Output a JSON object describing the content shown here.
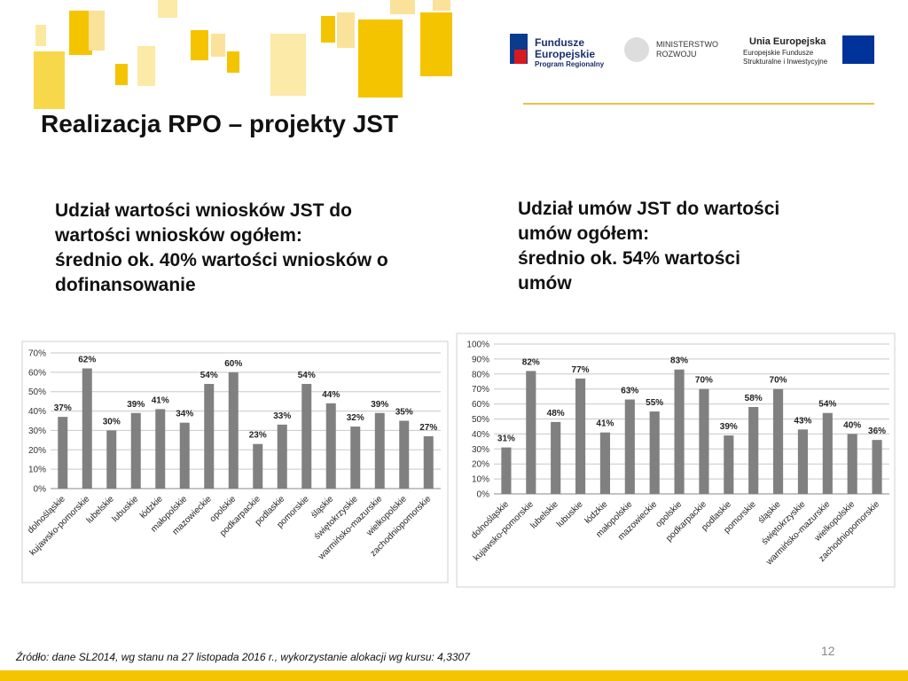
{
  "header": {
    "title": "Realizacja RPO – projekty JST"
  },
  "logos": {
    "fundusze": [
      "Fundusze",
      "Europejskie",
      "Program Regionalny"
    ],
    "ministerstwo": [
      "MINISTERSTWO",
      "ROZWOJU"
    ],
    "unia": [
      "Unia Europejska",
      "Europejskie Fundusze",
      "Strukturalne i Inwestycyjne"
    ]
  },
  "chart_data": [
    {
      "type": "bar",
      "title": [
        "Udział wartości wniosków JST do",
        "wartości wniosków ogółem:",
        "średnio ok. 40% wartości wniosków o",
        "dofinansowanie"
      ],
      "categories": [
        "dolnośląskie",
        "kujawsko-pomorskie",
        "lubelskie",
        "lubuskie",
        "łódzkie",
        "małopolskie",
        "mazowieckie",
        "opolskie",
        "podkarpackie",
        "podlaskie",
        "pomorskie",
        "śląskie",
        "świętokrzyskie",
        "warmińsko-mazurskie",
        "wielkopolskie",
        "zachodniopomorskie"
      ],
      "values": [
        37,
        62,
        30,
        39,
        41,
        34,
        54,
        60,
        23,
        33,
        54,
        44,
        32,
        39,
        35,
        27
      ],
      "value_labels": [
        "37%",
        "62%",
        "30%",
        "39%",
        "41%",
        "34%",
        "54%",
        "60%",
        "23%",
        "33%",
        "54%",
        "44%",
        "32%",
        "39%",
        "35%",
        "27%"
      ],
      "color": "#808080",
      "ylim": [
        0,
        70
      ],
      "yticks": [
        {
          "value": 0,
          "label": "0%"
        },
        {
          "value": 10,
          "label": "10%"
        },
        {
          "value": 20,
          "label": "20%"
        },
        {
          "value": 30,
          "label": "30%"
        },
        {
          "value": 40,
          "label": "40%"
        },
        {
          "value": 50,
          "label": "50%"
        },
        {
          "value": 60,
          "label": "60%"
        },
        {
          "value": 70,
          "label": "70%"
        }
      ],
      "grid": true
    },
    {
      "type": "bar",
      "title": [
        "Udział umów JST do wartości",
        "umów ogółem:",
        "średnio ok. 54% wartości",
        "umów"
      ],
      "categories": [
        "dolnośląskie",
        "kujawsko-pomorskie",
        "lubelskie",
        "lubuskie",
        "łódzkie",
        "małopolskie",
        "mazowieckie",
        "opolskie",
        "podkarpackie",
        "podlaskie",
        "pomorskie",
        "śląskie",
        "świętokrzyskie",
        "warmińsko-mazurskie",
        "wielkopolskie",
        "zachodniopomorskie"
      ],
      "values": [
        31,
        82,
        48,
        77,
        41,
        63,
        55,
        83,
        70,
        39,
        58,
        70,
        43,
        54,
        40,
        36
      ],
      "value_labels": [
        "31%",
        "82%",
        "48%",
        "77%",
        "41%",
        "63%",
        "55%",
        "83%",
        "70%",
        "39%",
        "58%",
        "70%",
        "43%",
        "54%",
        "40%",
        "36%"
      ],
      "color": "#808080",
      "ylim": [
        0,
        100
      ],
      "yticks": [
        {
          "value": 0,
          "label": "0%"
        },
        {
          "value": 10,
          "label": "10%"
        },
        {
          "value": 20,
          "label": "20%"
        },
        {
          "value": 30,
          "label": "30%"
        },
        {
          "value": 40,
          "label": "40%"
        },
        {
          "value": 50,
          "label": "50%"
        },
        {
          "value": 60,
          "label": "60%"
        },
        {
          "value": 70,
          "label": "70%"
        },
        {
          "value": 80,
          "label": "80%"
        },
        {
          "value": 90,
          "label": "90%"
        },
        {
          "value": 100,
          "label": "100%"
        }
      ],
      "grid": true
    }
  ],
  "footer": {
    "source": "Źródło: dane SL2014, wg stanu na 27 listopada 2016 r., wykorzystanie  alokacji wg kursu: 4,3307",
    "page": "12"
  }
}
